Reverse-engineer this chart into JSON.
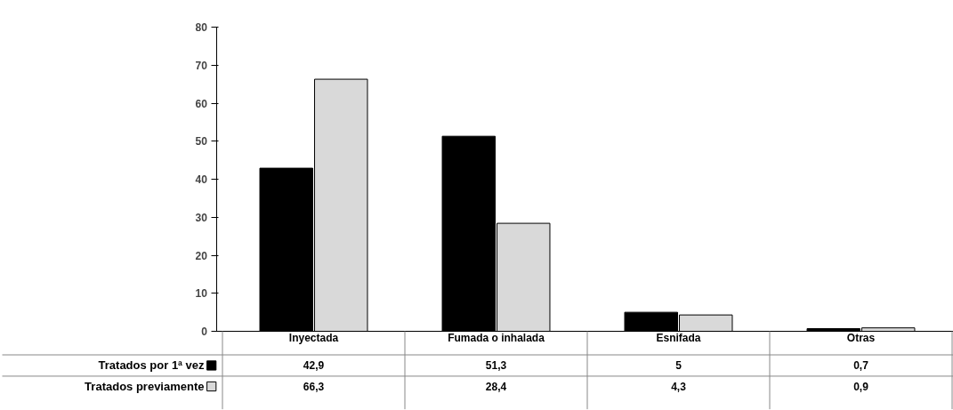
{
  "chart_data": {
    "type": "bar",
    "categories": [
      "Inyectada",
      "Fumada o inhalada",
      "Esnifada",
      "Otras"
    ],
    "series": [
      {
        "name": "Tratados por 1ª vez",
        "color": "#000000",
        "values": [
          42.9,
          51.3,
          5,
          0.7
        ],
        "value_labels": [
          "42,9",
          "51,3",
          "5",
          "0,7"
        ]
      },
      {
        "name": "Tratados previamente",
        "color": "#d9d9d9",
        "values": [
          66.3,
          28.4,
          4.3,
          0.9
        ],
        "value_labels": [
          "66,3",
          "28,4",
          "4,3",
          "0,9"
        ]
      }
    ],
    "ylim": [
      0,
      80
    ],
    "yticks": [
      0,
      10,
      20,
      30,
      40,
      50,
      60,
      70,
      80
    ],
    "legend": "bottom left"
  }
}
